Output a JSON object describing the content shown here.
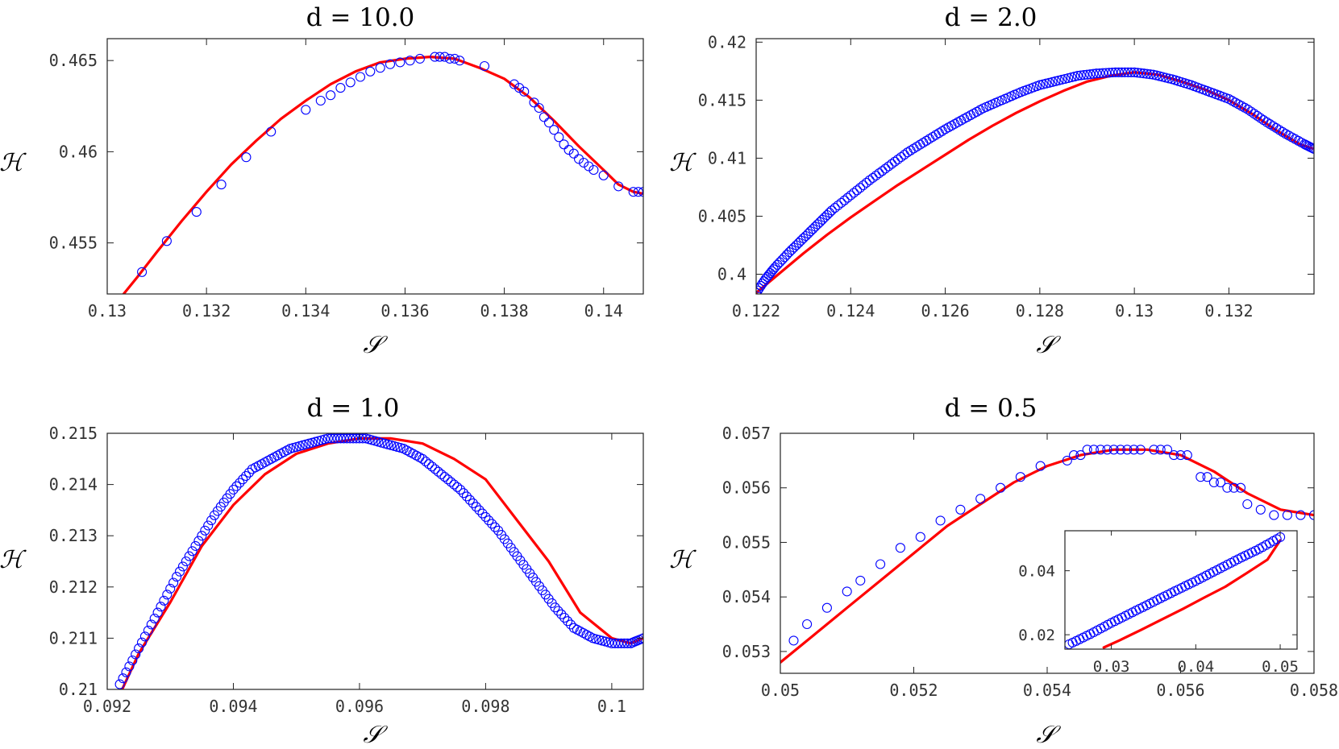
{
  "chart_data": [
    {
      "type": "scatter",
      "title": "d = 10.0",
      "xlabel": "𝒮",
      "ylabel": "ℋ",
      "xlim": [
        0.13,
        0.1408
      ],
      "ylim": [
        0.4522,
        0.4662
      ],
      "xticks": [
        0.13,
        0.132,
        0.134,
        0.136,
        0.138,
        0.14
      ],
      "xtick_labels": [
        "0.13",
        "0.132",
        "0.134",
        "0.136",
        "0.138",
        "0.14"
      ],
      "yticks": [
        0.455,
        0.46,
        0.465
      ],
      "ytick_labels": [
        "0.455",
        "0.46",
        "0.465"
      ],
      "series": [
        {
          "name": "markers",
          "style": "open-circle",
          "color": "#0000ff",
          "x": [
            0.1307,
            0.1312,
            0.1318,
            0.1323,
            0.1328,
            0.1333,
            0.134,
            0.1343,
            0.1345,
            0.1347,
            0.1349,
            0.1351,
            0.1353,
            0.1355,
            0.1357,
            0.1359,
            0.1361,
            0.1363,
            0.1366,
            0.1367,
            0.1368,
            0.1369,
            0.137,
            0.1371,
            0.1376,
            0.1382,
            0.1383,
            0.1384,
            0.1386,
            0.1387,
            0.1388,
            0.1389,
            0.139,
            0.1391,
            0.1392,
            0.1393,
            0.1394,
            0.1395,
            0.1396,
            0.1397,
            0.1398,
            0.14,
            0.1403,
            0.1406,
            0.1407,
            0.1408
          ],
          "y": [
            0.4534,
            0.4551,
            0.4567,
            0.4582,
            0.4597,
            0.4611,
            0.4623,
            0.4628,
            0.4631,
            0.4635,
            0.4638,
            0.4641,
            0.4644,
            0.4646,
            0.4648,
            0.4649,
            0.465,
            0.4651,
            0.4652,
            0.4652,
            0.4652,
            0.4651,
            0.4651,
            0.465,
            0.4647,
            0.4637,
            0.4635,
            0.4633,
            0.4627,
            0.4624,
            0.4619,
            0.4616,
            0.4612,
            0.4608,
            0.4604,
            0.4601,
            0.4599,
            0.4596,
            0.4594,
            0.4592,
            0.459,
            0.4587,
            0.4581,
            0.4578,
            0.4578,
            0.4578
          ]
        },
        {
          "name": "fit",
          "style": "line",
          "color": "#ff0000",
          "x": [
            0.1303,
            0.1306,
            0.131,
            0.1315,
            0.132,
            0.1325,
            0.133,
            0.1335,
            0.134,
            0.1345,
            0.135,
            0.1355,
            0.136,
            0.1365,
            0.137,
            0.1375,
            0.138,
            0.1385,
            0.139,
            0.1395,
            0.14,
            0.1403,
            0.1406,
            0.1408
          ],
          "y": [
            0.4521,
            0.4531,
            0.4545,
            0.4562,
            0.4578,
            0.4593,
            0.4606,
            0.4618,
            0.4628,
            0.4637,
            0.4644,
            0.4649,
            0.4651,
            0.4652,
            0.4651,
            0.4646,
            0.464,
            0.463,
            0.4617,
            0.4603,
            0.459,
            0.4582,
            0.4578,
            0.4577
          ]
        }
      ]
    },
    {
      "type": "scatter",
      "title": "d = 2.0",
      "xlabel": "𝒮",
      "ylabel": "ℋ",
      "xlim": [
        0.122,
        0.1338
      ],
      "ylim": [
        0.3983,
        0.4203
      ],
      "xticks": [
        0.122,
        0.124,
        0.126,
        0.128,
        0.13,
        0.132
      ],
      "xtick_labels": [
        "0.122",
        "0.124",
        "0.126",
        "0.128",
        "0.13",
        "0.132"
      ],
      "yticks": [
        0.4,
        0.405,
        0.41,
        0.415,
        0.42
      ],
      "ytick_labels": [
        "0.4",
        "0.405",
        "0.41",
        "0.415",
        "0.42"
      ],
      "series": [
        {
          "name": "markers",
          "style": "open-circle",
          "color": "#0000ff",
          "dense": true,
          "x": [
            0.122,
            0.1222,
            0.1224,
            0.1227,
            0.123,
            0.1233,
            0.1236,
            0.124,
            0.1244,
            0.1248,
            0.1252,
            0.1256,
            0.126,
            0.1264,
            0.1268,
            0.1272,
            0.1276,
            0.128,
            0.1284,
            0.1288,
            0.1292,
            0.1296,
            0.13,
            0.1304,
            0.1308,
            0.1312,
            0.1316,
            0.132,
            0.1324,
            0.1328,
            0.1332,
            0.1336,
            0.1338
          ],
          "y": [
            0.3984,
            0.3996,
            0.4006,
            0.4019,
            0.4031,
            0.4043,
            0.4055,
            0.4068,
            0.4081,
            0.4093,
            0.4105,
            0.4115,
            0.4125,
            0.4134,
            0.4143,
            0.415,
            0.4157,
            0.4163,
            0.4167,
            0.4171,
            0.4173,
            0.4174,
            0.4174,
            0.4172,
            0.4168,
            0.4163,
            0.4157,
            0.4151,
            0.4142,
            0.4131,
            0.4121,
            0.4112,
            0.4108
          ]
        },
        {
          "name": "fit",
          "style": "line",
          "color": "#ff0000",
          "x": [
            0.122,
            0.1225,
            0.123,
            0.1235,
            0.124,
            0.1245,
            0.125,
            0.1255,
            0.126,
            0.1265,
            0.127,
            0.1275,
            0.128,
            0.1285,
            0.129,
            0.1295,
            0.13,
            0.1305,
            0.131,
            0.1315,
            0.132,
            0.1325,
            0.133,
            0.1335,
            0.1338
          ],
          "y": [
            0.3984,
            0.4001,
            0.4018,
            0.4034,
            0.4049,
            0.4063,
            0.4077,
            0.409,
            0.4103,
            0.4116,
            0.4128,
            0.4139,
            0.4149,
            0.4158,
            0.4166,
            0.4171,
            0.4174,
            0.4172,
            0.4166,
            0.4159,
            0.415,
            0.4138,
            0.4124,
            0.4112,
            0.4108
          ]
        }
      ]
    },
    {
      "type": "scatter",
      "title": "d = 1.0",
      "xlabel": "𝒮",
      "ylabel": "ℋ",
      "xlim": [
        0.092,
        0.1005
      ],
      "ylim": [
        0.21,
        0.215
      ],
      "xticks": [
        0.092,
        0.094,
        0.096,
        0.098,
        0.1
      ],
      "xtick_labels": [
        "0.092",
        "0.094",
        "0.096",
        "0.098",
        "0.1"
      ],
      "yticks": [
        0.21,
        0.211,
        0.212,
        0.213,
        0.214,
        0.215
      ],
      "ytick_labels": [
        "0.21",
        "0.211",
        "0.212",
        "0.213",
        "0.214",
        "0.215"
      ],
      "series": [
        {
          "name": "markers",
          "style": "open-circle",
          "color": "#0000ff",
          "dense": true,
          "x": [
            0.0922,
            0.0925,
            0.0928,
            0.0931,
            0.0934,
            0.0937,
            0.094,
            0.0943,
            0.0946,
            0.0949,
            0.0952,
            0.0955,
            0.0958,
            0.0961,
            0.0964,
            0.0967,
            0.097,
            0.0973,
            0.0976,
            0.0979,
            0.0982,
            0.0985,
            0.0988,
            0.0991,
            0.0994,
            0.0997,
            0.1,
            0.1003,
            0.1005
          ],
          "y": [
            0.2101,
            0.2108,
            0.2115,
            0.2122,
            0.2128,
            0.2134,
            0.2139,
            0.2143,
            0.2145,
            0.2147,
            0.2148,
            0.2149,
            0.2149,
            0.2149,
            0.2148,
            0.2147,
            0.2145,
            0.2142,
            0.2139,
            0.2135,
            0.2131,
            0.2126,
            0.2121,
            0.2116,
            0.2112,
            0.211,
            0.2109,
            0.2109,
            0.211
          ]
        },
        {
          "name": "fit",
          "style": "line",
          "color": "#ff0000",
          "x": [
            0.0922,
            0.0925,
            0.093,
            0.0935,
            0.094,
            0.0945,
            0.095,
            0.0955,
            0.096,
            0.0965,
            0.097,
            0.0975,
            0.098,
            0.0985,
            0.099,
            0.0995,
            0.1,
            0.1003,
            0.1005
          ],
          "y": [
            0.2099,
            0.2107,
            0.2117,
            0.2128,
            0.2136,
            0.2142,
            0.2146,
            0.2148,
            0.2149,
            0.2149,
            0.2148,
            0.2145,
            0.2141,
            0.2133,
            0.2125,
            0.2115,
            0.211,
            0.2109,
            0.211
          ]
        }
      ]
    },
    {
      "type": "scatter",
      "title": "d = 0.5",
      "xlabel": "𝒮",
      "ylabel": "ℋ",
      "xlim": [
        0.05,
        0.058
      ],
      "ylim": [
        0.0526,
        0.057
      ],
      "xticks": [
        0.05,
        0.052,
        0.054,
        0.056,
        0.058
      ],
      "xtick_labels": [
        "0.05",
        "0.052",
        "0.054",
        "0.056",
        "0.058"
      ],
      "yticks": [
        0.053,
        0.054,
        0.055,
        0.056,
        0.057
      ],
      "ytick_labels": [
        "0.053",
        "0.054",
        "0.055",
        "0.056",
        "0.057"
      ],
      "series": [
        {
          "name": "markers",
          "style": "open-circle",
          "color": "#0000ff",
          "x": [
            0.0502,
            0.0504,
            0.0507,
            0.051,
            0.0512,
            0.0515,
            0.0518,
            0.0521,
            0.0524,
            0.0527,
            0.053,
            0.0533,
            0.0536,
            0.0539,
            0.0543,
            0.0544,
            0.0545,
            0.0546,
            0.0547,
            0.0548,
            0.0549,
            0.055,
            0.0551,
            0.0552,
            0.0553,
            0.0554,
            0.0556,
            0.0557,
            0.0558,
            0.0559,
            0.056,
            0.0561,
            0.0563,
            0.0564,
            0.0565,
            0.0566,
            0.0567,
            0.0568,
            0.0569,
            0.057,
            0.0572,
            0.0574,
            0.0576,
            0.0578,
            0.058
          ],
          "y": [
            0.0532,
            0.0535,
            0.0538,
            0.0541,
            0.0543,
            0.0546,
            0.0549,
            0.0551,
            0.0554,
            0.0556,
            0.0558,
            0.056,
            0.0562,
            0.0564,
            0.0565,
            0.0566,
            0.0566,
            0.0567,
            0.0567,
            0.0567,
            0.0567,
            0.0567,
            0.0567,
            0.0567,
            0.0567,
            0.0567,
            0.0567,
            0.0567,
            0.0567,
            0.0566,
            0.0566,
            0.0566,
            0.0562,
            0.0562,
            0.0561,
            0.0561,
            0.056,
            0.056,
            0.056,
            0.0557,
            0.0556,
            0.0555,
            0.0555,
            0.0555,
            0.0555
          ]
        },
        {
          "name": "fit",
          "style": "line",
          "color": "#ff0000",
          "x": [
            0.05,
            0.0505,
            0.051,
            0.0515,
            0.052,
            0.0525,
            0.053,
            0.0535,
            0.054,
            0.0545,
            0.055,
            0.0555,
            0.056,
            0.0565,
            0.057,
            0.0575,
            0.058
          ],
          "y": [
            0.0528,
            0.0533,
            0.0538,
            0.0543,
            0.0548,
            0.0553,
            0.0557,
            0.0561,
            0.0564,
            0.0566,
            0.0567,
            0.0567,
            0.0566,
            0.0563,
            0.0559,
            0.0556,
            0.0555
          ]
        }
      ],
      "inset": {
        "type": "scatter",
        "xlim": [
          0.0245,
          0.052
        ],
        "ylim": [
          0.0155,
          0.0525
        ],
        "xticks": [
          0.03,
          0.04,
          0.05
        ],
        "xtick_labels": [
          "0.03",
          "0.04",
          "0.05"
        ],
        "yticks": [
          0.02,
          0.04
        ],
        "ytick_labels": [
          "0.02",
          "0.04"
        ],
        "series": [
          {
            "name": "markers",
            "style": "open-circle",
            "color": "#0000ff",
            "dense": true,
            "x": [
              0.025,
              0.0275,
              0.03,
              0.0325,
              0.035,
              0.0375,
              0.04,
              0.0425,
              0.045,
              0.0475,
              0.05
            ],
            "y": [
              0.017,
              0.0202,
              0.0237,
              0.027,
              0.0303,
              0.0336,
              0.0368,
              0.0402,
              0.0436,
              0.0468,
              0.0505
            ]
          },
          {
            "name": "fit",
            "style": "line",
            "color": "#ff0000",
            "x": [
              0.0291,
              0.031,
              0.0335,
              0.036,
              0.0385,
              0.041,
              0.0435,
              0.046,
              0.0485,
              0.05
            ],
            "y": [
              0.016,
              0.0183,
              0.0215,
              0.0248,
              0.0281,
              0.0316,
              0.035,
              0.0392,
              0.0435,
              0.0495
            ]
          }
        ]
      }
    }
  ]
}
